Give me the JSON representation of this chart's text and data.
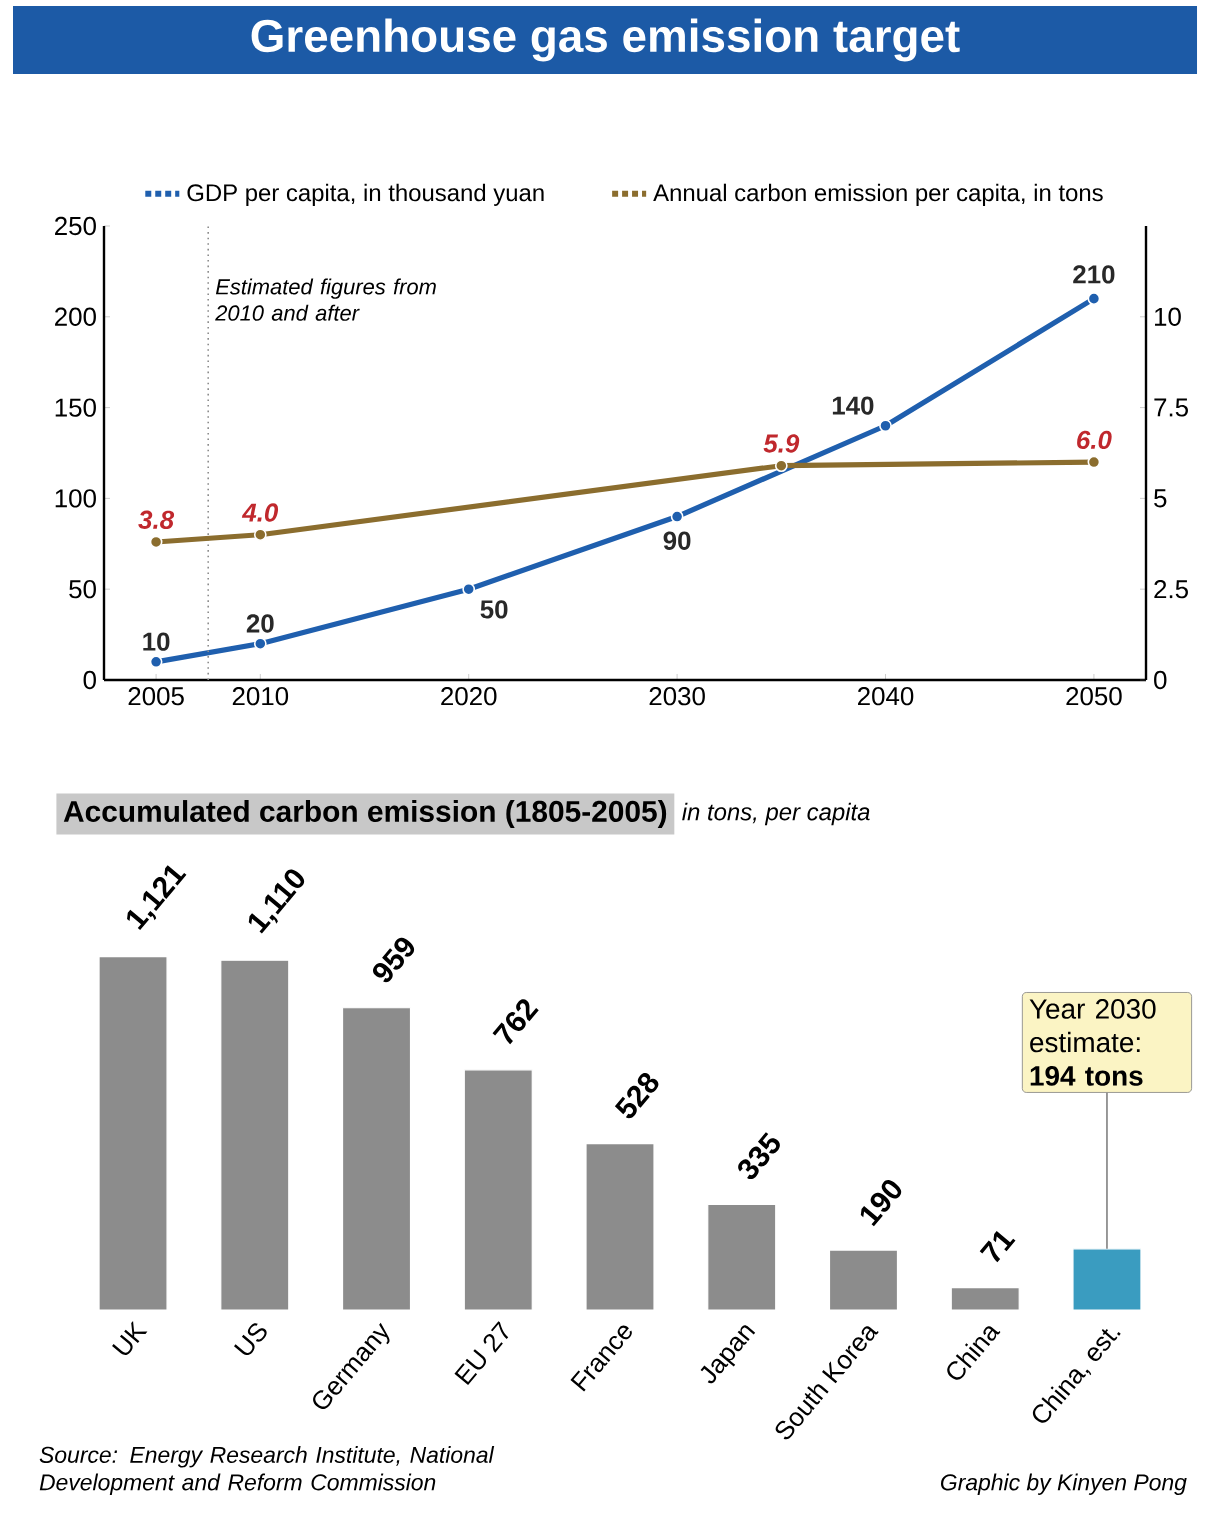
{
  "chart_data": [
    {
      "type": "line",
      "title": "Greenhouse gas emission target",
      "xlim": [
        2002.5,
        2052.5
      ],
      "xticks": [
        2005,
        2010,
        2020,
        2030,
        2040,
        2050
      ],
      "ylim": [
        0,
        250
      ],
      "yticks": [
        0,
        50,
        100,
        150,
        200,
        250
      ],
      "y2lim": [
        0,
        12.5
      ],
      "y2ticks": [
        0,
        2.5,
        5,
        7.5,
        10
      ],
      "marker": "circle",
      "legend": "top",
      "ref_lines": [
        {
          "axis": "x",
          "value": 2007.5,
          "label": "Estimated figures from 2010 and after",
          "line_style": "dotted",
          "color": "#8c8c8c"
        }
      ],
      "series": [
        {
          "name": "GDP per capita, in thousand yuan",
          "color": "#1f5fae",
          "x": [
            2005,
            2010,
            2020,
            2030,
            2040,
            2050
          ],
          "values": [
            10,
            20,
            50,
            90,
            140,
            210
          ],
          "value_labels": [
            "10",
            "20",
            "50",
            "90",
            "140",
            "210"
          ]
        },
        {
          "name": "Annual carbon emission per capita, in tons",
          "color": "#8b6d2e",
          "axis": "y2",
          "x": [
            2005,
            2010,
            2035,
            2050
          ],
          "values": [
            3.8,
            4.0,
            5.9,
            6.0
          ],
          "value_labels": [
            "3.8",
            "4.0",
            "5.9",
            "6.0"
          ]
        }
      ]
    },
    {
      "type": "bar",
      "title": "Accumulated carbon emission (1805-2005)",
      "subtitle": "in tons, per capita",
      "tick_labels": "x",
      "categories": [
        "UK",
        "US",
        "Germany",
        "EU 27",
        "France",
        "Japan",
        "South Korea",
        "China",
        "China, est."
      ],
      "values": [
        1121,
        1110,
        959,
        762,
        528,
        335,
        190,
        71,
        194
      ],
      "value_labels": [
        "1,121",
        "1,110",
        "959",
        "762",
        "528",
        "335",
        "190",
        "71",
        null
      ],
      "colors": [
        "#8c8c8c",
        "#8c8c8c",
        "#8c8c8c",
        "#8c8c8c",
        "#8c8c8c",
        "#8c8c8c",
        "#8c8c8c",
        "#8c8c8c",
        "#3a9cc0"
      ],
      "annotations": [
        {
          "text": "Year 2030 estimate: **194 tons**",
          "x": "China, est.",
          "y": 194
        },
        "Source: Energy Research Institute, National Development and Reform Commission",
        "Graphic by Kinyen Pong"
      ]
    }
  ]
}
